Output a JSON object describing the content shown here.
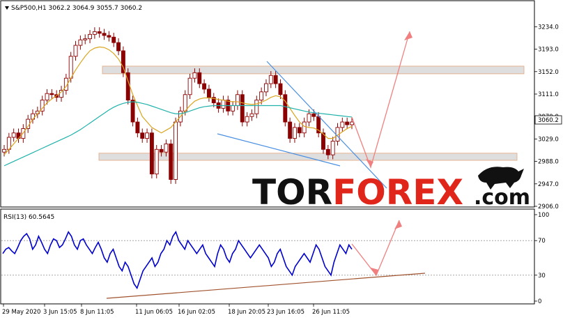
{
  "header": {
    "title": "S&P500,H1  3062.2 3064.9 3055.7 3060.2"
  },
  "watermark": {
    "part1": "TOR",
    "part2": "FOREX",
    "part3": ".com"
  },
  "colors": {
    "candle": "#8b0000",
    "ma_fast": "#daa520",
    "ma_slow": "#20b2aa",
    "trend": "#4a90e2",
    "arrow": "#f08080",
    "rsi": "#0000cd",
    "rsi_trend": "#a0522d",
    "zone": "#d3d3d3",
    "price_tag_bg": "#ffffff"
  },
  "chart_data": [
    {
      "type": "candlestick",
      "symbol": "S&P500",
      "timeframe": "H1",
      "last_price": "3060.2",
      "ylim": [
        2906,
        3265
      ],
      "yticks": [
        "3234.0",
        "3193.0",
        "3152.0",
        "3111.0",
        "3070.0",
        "3029.0",
        "2988.0",
        "2947.0",
        "2906.0"
      ],
      "ytick_values": [
        3234,
        3193,
        3152,
        3111,
        3070,
        3029,
        2988,
        2947,
        2906
      ],
      "series": [
        {
          "name": "",
          "role": "close",
          "values": [
            3010,
            3032,
            3040,
            3030,
            3048,
            3065,
            3075,
            3080,
            3100,
            3112,
            3110,
            3105,
            3118,
            3140,
            3180,
            3200,
            3210,
            3212,
            3220,
            3225,
            3222,
            3218,
            3215,
            3205,
            3190,
            3150,
            3100,
            3060,
            3040,
            3030,
            3040,
            2965,
            3010,
            3005,
            3020,
            2955,
            3060,
            3080,
            3110,
            3140,
            3150,
            3130,
            3120,
            3105,
            3095,
            3085,
            3100,
            3080,
            3090,
            3110,
            3060,
            3070,
            3075,
            3100,
            3115,
            3130,
            3145,
            3130,
            3110,
            3060,
            3030,
            3050,
            3040,
            3060,
            3075,
            3070,
            3040,
            3010,
            3000,
            3025,
            3050,
            3060,
            3055,
            3060
          ]
        },
        {
          "name": "",
          "role": "ma_fast",
          "values": [
            3000,
            3010,
            3020,
            3030,
            3040,
            3052,
            3065,
            3075,
            3085,
            3095,
            3102,
            3108,
            3115,
            3125,
            3140,
            3155,
            3168,
            3180,
            3190,
            3195,
            3197,
            3196,
            3192,
            3185,
            3175,
            3160,
            3135,
            3110,
            3090,
            3070,
            3060,
            3050,
            3045,
            3040,
            3045,
            3050,
            3060,
            3070,
            3080,
            3090,
            3098,
            3102,
            3104,
            3104,
            3103,
            3101,
            3100,
            3098,
            3097,
            3097,
            3095,
            3093,
            3092,
            3093,
            3096,
            3100,
            3105,
            3108,
            3106,
            3098,
            3085,
            3072,
            3060,
            3052,
            3050,
            3049,
            3045,
            3038,
            3030,
            3030,
            3036,
            3042,
            3048,
            3052
          ]
        },
        {
          "name": "",
          "role": "ma_slow",
          "values": [
            2980,
            2984,
            2988,
            2992,
            2996,
            3000,
            3004,
            3008,
            3012,
            3016,
            3020,
            3024,
            3028,
            3032,
            3036,
            3041,
            3046,
            3052,
            3058,
            3064,
            3070,
            3076,
            3082,
            3087,
            3091,
            3094,
            3096,
            3097,
            3096,
            3094,
            3092,
            3089,
            3086,
            3083,
            3080,
            3077,
            3075,
            3075,
            3077,
            3080,
            3083,
            3086,
            3088,
            3089,
            3090,
            3090,
            3090,
            3090,
            3090,
            3090,
            3090,
            3090,
            3090,
            3090,
            3090,
            3090,
            3090,
            3090,
            3090,
            3088,
            3086,
            3084,
            3082,
            3080,
            3078,
            3077,
            3076,
            3075,
            3074,
            3073,
            3072,
            3071,
            3070,
            3069
          ]
        }
      ],
      "zones": [
        {
          "low": 3148,
          "high": 3162
        },
        {
          "low": 2990,
          "high": 3003
        }
      ]
    },
    {
      "type": "line",
      "title": "RSI(13) 60.5645",
      "ylim": [
        0,
        100
      ],
      "yticks": [
        "100",
        "70",
        "30",
        "0"
      ],
      "ytick_values": [
        100,
        70,
        30,
        0
      ],
      "levels": [
        70,
        30
      ],
      "series": [
        {
          "name": "",
          "values": [
            55,
            60,
            62,
            58,
            55,
            62,
            70,
            75,
            78,
            72,
            60,
            65,
            75,
            68,
            60,
            55,
            65,
            72,
            70,
            62,
            65,
            72,
            80,
            75,
            65,
            60,
            70,
            72,
            65,
            60,
            55,
            62,
            68,
            60,
            50,
            45,
            55,
            60,
            50,
            40,
            35,
            45,
            40,
            30,
            20,
            15,
            25,
            35,
            40,
            45,
            50,
            40,
            45,
            55,
            60,
            70,
            65,
            75,
            80,
            70,
            65,
            60,
            70,
            65,
            60,
            55,
            60,
            65,
            55,
            50,
            45,
            40,
            55,
            65,
            60,
            50,
            45,
            55,
            60,
            70,
            65,
            60,
            55,
            50,
            55,
            60,
            65,
            60,
            55,
            50,
            40,
            45,
            55,
            60,
            50,
            40,
            35,
            30,
            40,
            45,
            50,
            55,
            50,
            45,
            55,
            65,
            60,
            50,
            40,
            35,
            30,
            45,
            55,
            65,
            60,
            55,
            65,
            60
          ]
        }
      ]
    }
  ],
  "time_axis": {
    "labels": [
      "29 May 2020",
      "3 Jun 15:05",
      "8 Jun 11:05",
      "11 Jun 06:05",
      "16 Jun 02:05",
      "18 Jun 20:05",
      "23 Jun 16:05",
      "26 Jun 11:05"
    ]
  }
}
